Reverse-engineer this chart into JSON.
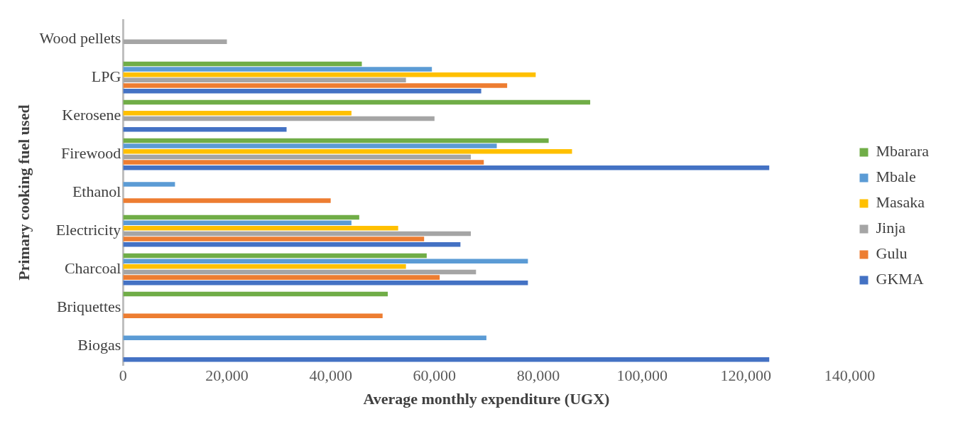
{
  "chart_data": {
    "type": "bar",
    "orientation": "horizontal",
    "xlabel": "Average monthly expenditure (UGX)",
    "ylabel": "Primary cooking fuel used",
    "categories": [
      "Wood pellets",
      "LPG",
      "Kerosene",
      "Firewood",
      "Ethanol",
      "Electricity",
      "Charcoal",
      "Briquettes",
      "Biogas"
    ],
    "series": [
      {
        "name": "Mbarara",
        "color": "#70ad47",
        "values": [
          null,
          46000,
          90000,
          82000,
          null,
          45500,
          58500,
          51000,
          null
        ]
      },
      {
        "name": "Mbale",
        "color": "#5b9bd5",
        "values": [
          null,
          59500,
          null,
          72000,
          10000,
          44000,
          78000,
          null,
          70000
        ]
      },
      {
        "name": "Masaka",
        "color": "#ffc000",
        "values": [
          null,
          79500,
          44000,
          86500,
          null,
          53000,
          54500,
          null,
          null
        ]
      },
      {
        "name": "Jinja",
        "color": "#a5a5a5",
        "values": [
          20000,
          54500,
          60000,
          67000,
          null,
          67000,
          68000,
          null,
          null
        ]
      },
      {
        "name": "Gulu",
        "color": "#ed7d31",
        "values": [
          null,
          74000,
          null,
          69500,
          40000,
          58000,
          61000,
          50000,
          null
        ]
      },
      {
        "name": "GKMA",
        "color": "#4472c4",
        "values": [
          null,
          69000,
          31500,
          124500,
          null,
          65000,
          78000,
          null,
          124500
        ]
      }
    ],
    "xlim": [
      0,
      140000
    ],
    "xticks": [
      {
        "value": 0,
        "label": "0"
      },
      {
        "value": 20000,
        "label": "20,000"
      },
      {
        "value": 40000,
        "label": "40,000"
      },
      {
        "value": 60000,
        "label": "60,000"
      },
      {
        "value": 80000,
        "label": "80,000"
      },
      {
        "value": 100000,
        "label": "100,000"
      },
      {
        "value": 120000,
        "label": "120,000"
      },
      {
        "value": 140000,
        "label": "140,000"
      }
    ],
    "grid": false,
    "legend": "right"
  }
}
